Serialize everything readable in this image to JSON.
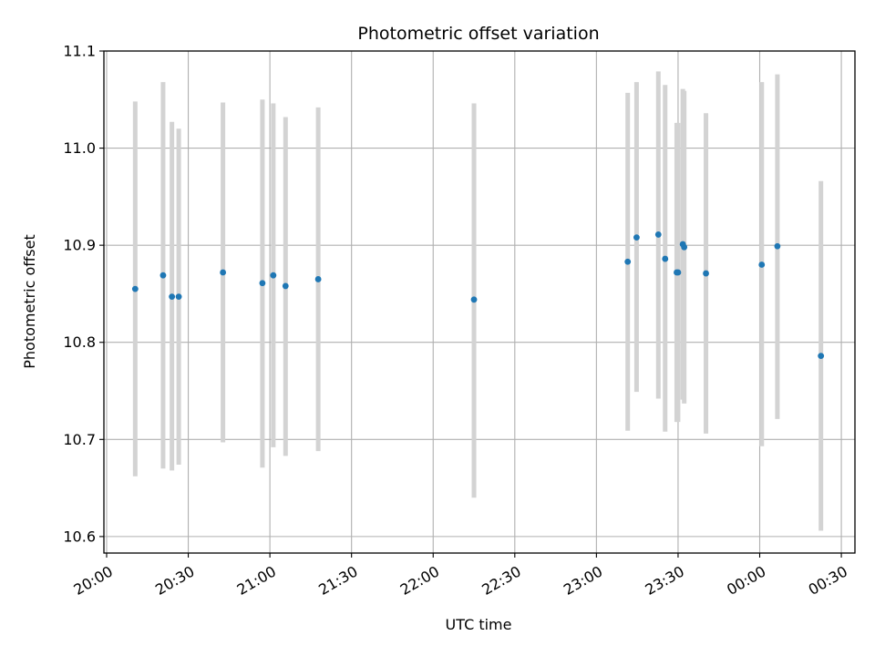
{
  "chart_data": {
    "type": "scatter",
    "title": "Photometric offset variation",
    "xlabel": "UTC time",
    "ylabel": "Photometric offset",
    "x_axis_type": "time",
    "xlim": [
      "2000-01-01T19:59:00",
      "2000-01-02T00:35:00"
    ],
    "ylim": [
      10.583,
      11.1
    ],
    "x_ticks": [
      {
        "t": "2000-01-01T20:00:00",
        "label": "20:00"
      },
      {
        "t": "2000-01-01T20:30:00",
        "label": "20:30"
      },
      {
        "t": "2000-01-01T21:00:00",
        "label": "21:00"
      },
      {
        "t": "2000-01-01T21:30:00",
        "label": "21:30"
      },
      {
        "t": "2000-01-01T22:00:00",
        "label": "22:00"
      },
      {
        "t": "2000-01-01T22:30:00",
        "label": "22:30"
      },
      {
        "t": "2000-01-01T23:00:00",
        "label": "23:00"
      },
      {
        "t": "2000-01-01T23:30:00",
        "label": "23:30"
      },
      {
        "t": "2000-01-02T00:00:00",
        "label": "00:00"
      },
      {
        "t": "2000-01-02T00:30:00",
        "label": "00:30"
      }
    ],
    "y_ticks": [
      {
        "v": 10.6,
        "label": "10.6"
      },
      {
        "v": 10.7,
        "label": "10.7"
      },
      {
        "v": 10.8,
        "label": "10.8"
      },
      {
        "v": 10.9,
        "label": "10.9"
      },
      {
        "v": 11.0,
        "label": "11.0"
      },
      {
        "v": 11.1,
        "label": "11.1"
      }
    ],
    "grid": true,
    "colors": {
      "point": "#1f77b4",
      "errorbar": "#d3d3d3",
      "grid": "#b0b0b0"
    },
    "points": [
      {
        "t": "2000-01-01T20:10:30",
        "y": 10.855,
        "lo": 10.662,
        "hi": 11.048
      },
      {
        "t": "2000-01-01T20:20:45",
        "y": 10.869,
        "lo": 10.67,
        "hi": 11.068
      },
      {
        "t": "2000-01-01T20:24:00",
        "y": 10.847,
        "lo": 10.668,
        "hi": 11.027
      },
      {
        "t": "2000-01-01T20:26:30",
        "y": 10.847,
        "lo": 10.674,
        "hi": 11.02
      },
      {
        "t": "2000-01-01T20:42:45",
        "y": 10.872,
        "lo": 10.697,
        "hi": 11.047
      },
      {
        "t": "2000-01-01T20:57:15",
        "y": 10.861,
        "lo": 10.671,
        "hi": 11.05
      },
      {
        "t": "2000-01-01T21:01:15",
        "y": 10.869,
        "lo": 10.692,
        "hi": 11.046
      },
      {
        "t": "2000-01-01T21:05:45",
        "y": 10.858,
        "lo": 10.683,
        "hi": 11.032
      },
      {
        "t": "2000-01-01T21:17:45",
        "y": 10.865,
        "lo": 10.688,
        "hi": 11.042
      },
      {
        "t": "2000-01-01T22:15:00",
        "y": 10.844,
        "lo": 10.64,
        "hi": 11.046
      },
      {
        "t": "2000-01-01T23:11:30",
        "y": 10.883,
        "lo": 10.709,
        "hi": 11.057
      },
      {
        "t": "2000-01-01T23:14:45",
        "y": 10.908,
        "lo": 10.749,
        "hi": 11.068
      },
      {
        "t": "2000-01-01T23:22:45",
        "y": 10.911,
        "lo": 10.742,
        "hi": 11.079
      },
      {
        "t": "2000-01-01T23:25:15",
        "y": 10.886,
        "lo": 10.708,
        "hi": 11.065
      },
      {
        "t": "2000-01-01T23:29:30",
        "y": 10.872,
        "lo": 10.718,
        "hi": 11.026
      },
      {
        "t": "2000-01-01T23:30:00",
        "y": 10.872,
        "lo": 10.718,
        "hi": 11.026
      },
      {
        "t": "2000-01-01T23:31:45",
        "y": 10.901,
        "lo": 10.741,
        "hi": 11.061
      },
      {
        "t": "2000-01-01T23:32:15",
        "y": 10.898,
        "lo": 10.737,
        "hi": 11.059
      },
      {
        "t": "2000-01-01T23:40:15",
        "y": 10.871,
        "lo": 10.706,
        "hi": 11.036
      },
      {
        "t": "2000-01-02T00:00:45",
        "y": 10.88,
        "lo": 10.693,
        "hi": 11.068
      },
      {
        "t": "2000-01-02T00:06:30",
        "y": 10.899,
        "lo": 10.721,
        "hi": 11.076
      },
      {
        "t": "2000-01-02T00:22:30",
        "y": 10.786,
        "lo": 10.606,
        "hi": 10.966
      }
    ]
  }
}
